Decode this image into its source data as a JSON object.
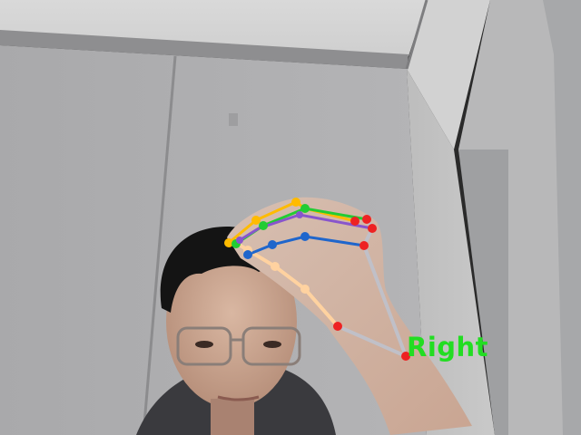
{
  "handedness": "Right",
  "colors": {
    "label": "#22dd22",
    "keypoint_wrist": "#ee2222",
    "bone_palm": "#c0c0c8",
    "thumb": "#ffd2a0",
    "index": "#1f66cc",
    "middle": "#ffbb00",
    "ring": "#22cc33",
    "pinky": "#8855cc",
    "fingertip": "#ee2222"
  }
}
